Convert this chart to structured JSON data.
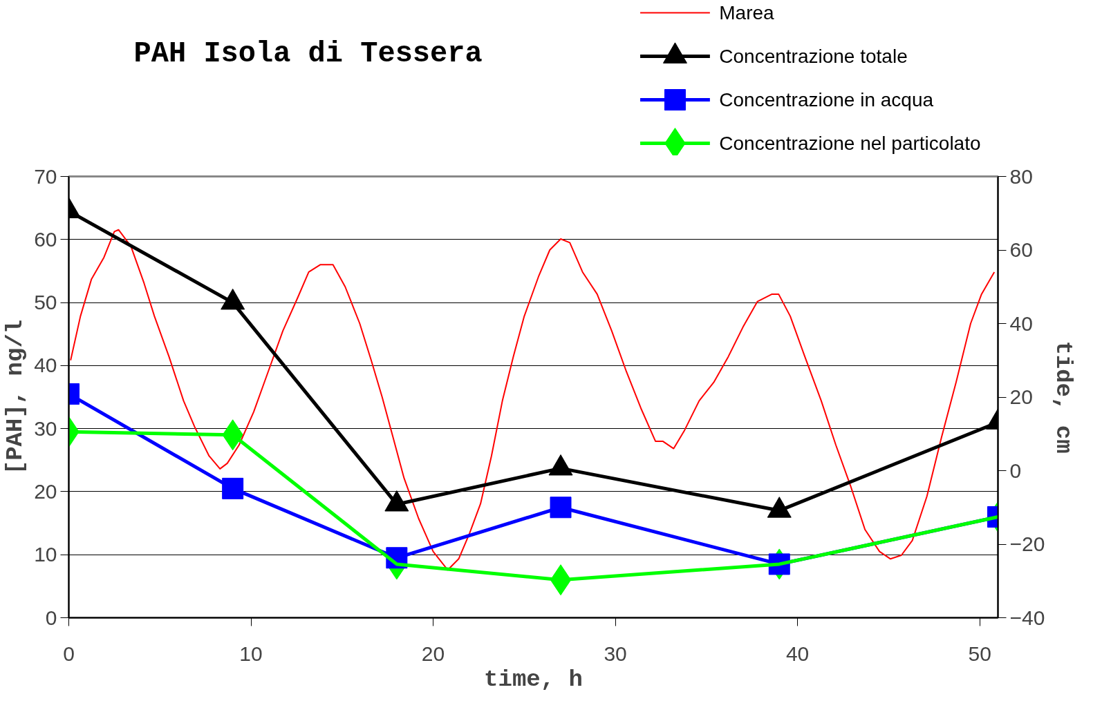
{
  "chart_data": {
    "type": "line",
    "title": "PAH Isola di Tessera",
    "xlabel": "time, h",
    "ylabel": "[PAH], ng/l",
    "y2label": "tide, cm",
    "xlim": [
      0,
      51
    ],
    "xticks": [
      0,
      10,
      20,
      30,
      40,
      50
    ],
    "ylim": [
      0,
      70
    ],
    "yticks": [
      0,
      10,
      20,
      30,
      40,
      50,
      60,
      70
    ],
    "y2lim": [
      -40,
      80
    ],
    "y2ticks": [
      -40,
      -20,
      0,
      20,
      40,
      60,
      80
    ],
    "grid": "y",
    "legend": "top right",
    "line_style": "solid",
    "series": [
      {
        "name": "Marea",
        "color": "#ff0000",
        "axis": "y2",
        "marker": "none",
        "x": [
          0.1,
          0.64,
          1.24,
          1.93,
          2.5,
          2.73,
          3.41,
          4.13,
          4.7,
          5.5,
          6.3,
          6.9,
          7.7,
          8.3,
          8.7,
          9.35,
          10.15,
          10.95,
          11.75,
          12.56,
          13.17,
          13.8,
          14.5,
          15.17,
          15.97,
          16.6,
          17.2,
          17.8,
          18.4,
          19.2,
          20.0,
          20.8,
          21.4,
          22.0,
          22.6,
          23.2,
          23.8,
          24.4,
          25.0,
          25.8,
          26.4,
          27.0,
          27.5,
          28.2,
          29.0,
          29.8,
          30.6,
          31.4,
          32.2,
          32.6,
          33.2,
          33.8,
          34.6,
          35.4,
          36.2,
          37.0,
          37.8,
          38.6,
          38.96,
          39.6,
          40.4,
          41.3,
          42.1,
          42.9,
          43.7,
          44.5,
          45.1,
          45.7,
          46.3,
          47.1,
          47.9,
          48.7,
          49.5,
          50.1,
          50.8
        ],
        "values": [
          30,
          42,
          52,
          58,
          65,
          65.5,
          61,
          51,
          42,
          31,
          19,
          12,
          4,
          0.5,
          2,
          7,
          16,
          27,
          38,
          47,
          54,
          56,
          56,
          50,
          40,
          30,
          20,
          9,
          -2,
          -13,
          -22,
          -27,
          -24,
          -17,
          -9,
          4,
          19,
          31,
          42,
          53,
          60,
          63,
          62,
          54,
          48,
          38,
          27,
          17,
          8,
          8,
          6,
          11,
          19,
          24,
          31,
          39,
          46,
          48,
          48,
          42,
          31,
          19,
          7,
          -4,
          -16,
          -22,
          -24,
          -23,
          -19,
          -7,
          9,
          24,
          40,
          48,
          54
        ]
      },
      {
        "name": "Concentrazione totale",
        "color": "#000000",
        "marker": "triangle",
        "x": [
          0,
          9,
          18,
          27,
          39,
          51
        ],
        "values": [
          64.5,
          50,
          18,
          23.7,
          17,
          31
        ]
      },
      {
        "name": "Concentrazione in  acqua",
        "color": "#0000ff",
        "marker": "square",
        "x": [
          0,
          9,
          18,
          27,
          39,
          51
        ],
        "values": [
          35.5,
          20.5,
          9.5,
          17.5,
          8.5,
          16
        ]
      },
      {
        "name": "Concentrazione nel particolato",
        "color": "#00ff00",
        "marker": "diamond",
        "x": [
          0,
          9,
          18,
          27,
          39,
          51
        ],
        "values": [
          29.5,
          29,
          8.5,
          6,
          8.5,
          16
        ]
      }
    ]
  }
}
